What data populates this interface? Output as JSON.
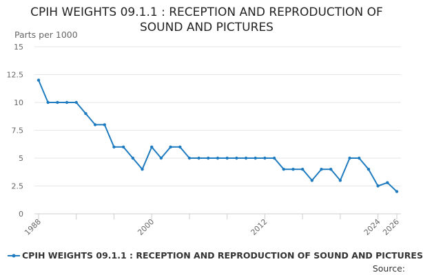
{
  "chart_data": {
    "type": "line",
    "title": "CPIH WEIGHTS 09.1.1 : RECEPTION AND REPRODUCTION OF SOUND AND PICTURES",
    "ylabel": "Parts per 1000",
    "xlabel": "",
    "ylim": [
      0,
      15
    ],
    "xlim": [
      1988,
      2026
    ],
    "y_ticks": [
      "0",
      "2.5",
      "5",
      "7.5",
      "10",
      "12.5",
      "15"
    ],
    "y_tick_values": [
      0,
      2.5,
      5,
      7.5,
      10,
      12.5,
      15
    ],
    "x_tick_labels": [
      "1988",
      "2000",
      "2012",
      "2024",
      "2026"
    ],
    "x_tick_values": [
      1988,
      2000,
      2012,
      2024,
      2026
    ],
    "grid": true,
    "series": [
      {
        "name": "CPIH WEIGHTS 09.1.1 : RECEPTION AND REPRODUCTION OF SOUND AND PICTURES",
        "color": "#1f7bbf",
        "x": [
          1988,
          1989,
          1990,
          1991,
          1992,
          1993,
          1994,
          1995,
          1996,
          1997,
          1998,
          1999,
          2000,
          2001,
          2002,
          2003,
          2004,
          2005,
          2006,
          2007,
          2008,
          2009,
          2010,
          2011,
          2012,
          2013,
          2014,
          2015,
          2016,
          2017,
          2018,
          2019,
          2020,
          2021,
          2022,
          2023,
          2024,
          2025,
          2026
        ],
        "values": [
          12,
          10,
          10,
          10,
          10,
          9,
          8,
          8,
          6,
          6,
          5,
          4,
          6,
          5,
          6,
          6,
          5,
          5,
          5,
          5,
          5,
          5,
          5,
          5,
          5,
          5,
          4,
          4,
          4,
          3,
          4,
          4,
          3,
          5,
          5,
          4,
          2.5,
          2.8,
          2
        ]
      }
    ]
  },
  "legend": {
    "label": "CPIH WEIGHTS 09.1.1 : RECEPTION AND REPRODUCTION OF SOUND AND PICTURES"
  },
  "footer": {
    "source_label": "Source:"
  }
}
